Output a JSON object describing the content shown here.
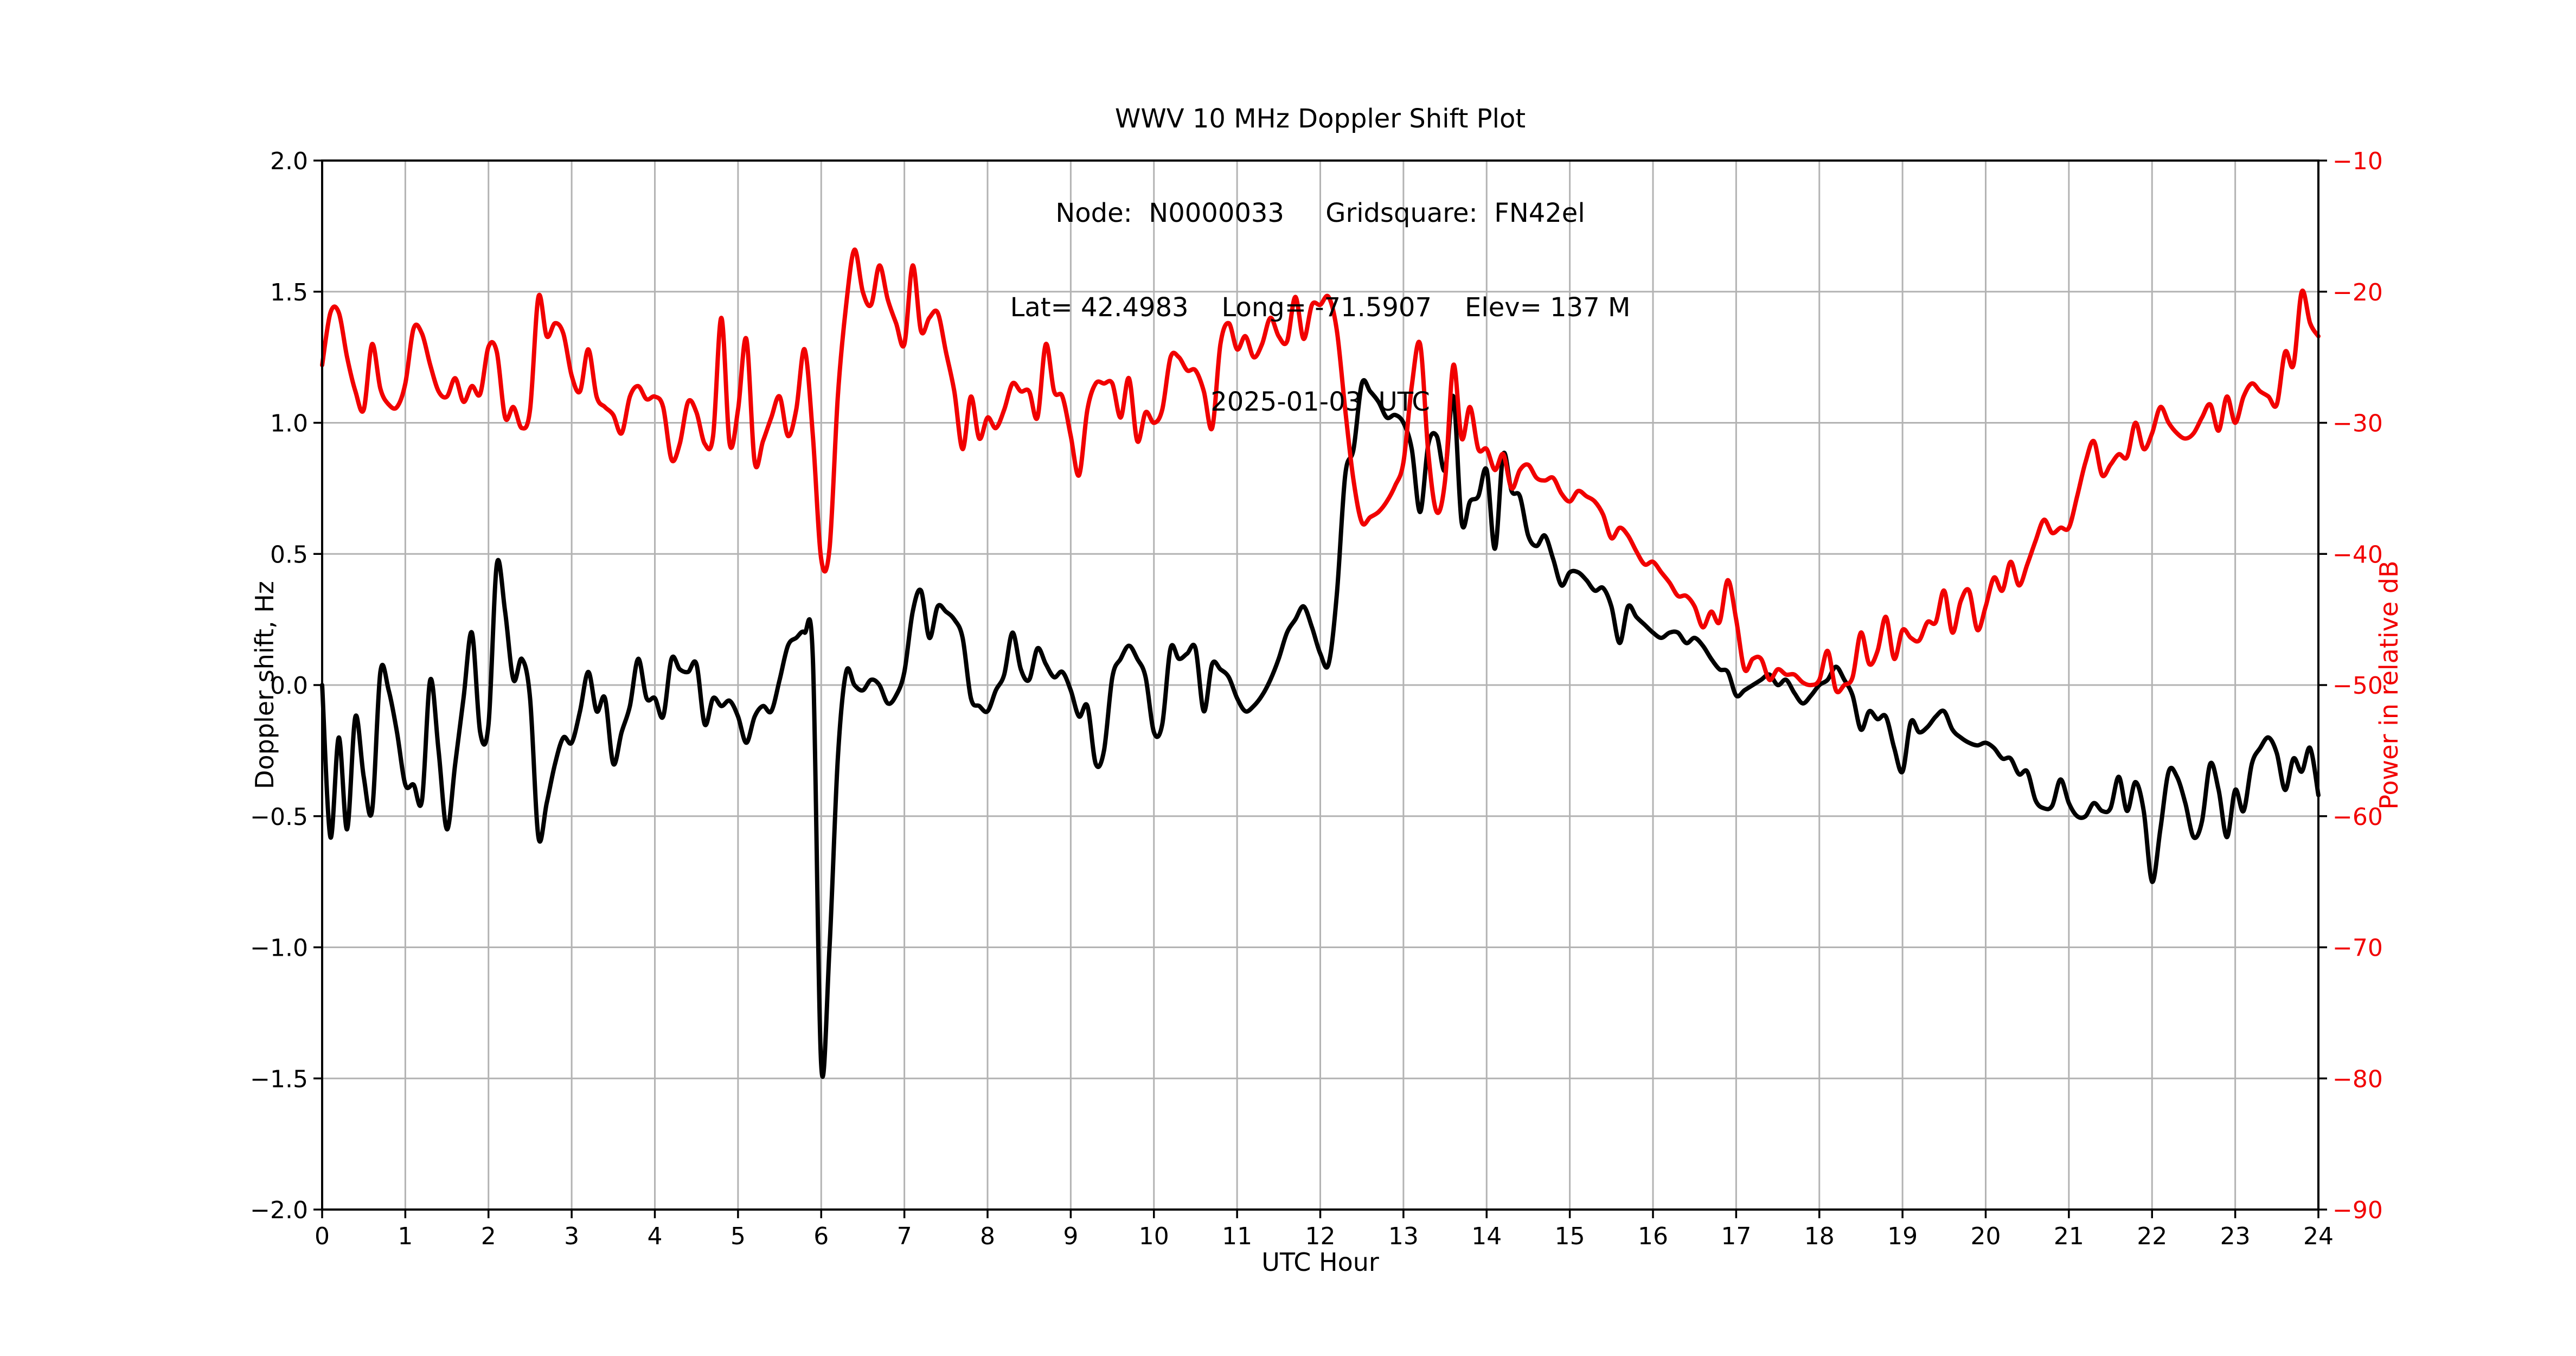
{
  "title": {
    "line1": "WWV 10 MHz Doppler Shift Plot",
    "line2": "Node:  N0000033     Gridsquare:  FN42el",
    "line3": "Lat= 42.4983    Long= -71.5907    Elev= 137 M",
    "line4": "2025-01-03  UTC"
  },
  "axes": {
    "x_label": "UTC Hour",
    "y_left_label": "Doppler shift, Hz",
    "y_right_label": "Power in relative dB",
    "x_tick_labels": [
      "0",
      "1",
      "2",
      "3",
      "4",
      "5",
      "6",
      "7",
      "8",
      "9",
      "10",
      "11",
      "12",
      "13",
      "14",
      "15",
      "16",
      "17",
      "18",
      "19",
      "20",
      "21",
      "22",
      "23",
      "24"
    ],
    "y_left_tick_labels": [
      "2.0",
      "1.5",
      "1.0",
      "0.5",
      "0.0",
      "−0.5",
      "−1.0",
      "−1.5",
      "−2.0"
    ],
    "y_right_tick_labels": [
      "−10",
      "−20",
      "−30",
      "−40",
      "−50",
      "−60",
      "−70",
      "−80",
      "−90"
    ]
  },
  "colors": {
    "doppler_line": "#000000",
    "power_line": "#f10000",
    "power_label": "#f10000",
    "grid": "#b3b3b3",
    "spine": "#000000",
    "background": "#ffffff"
  },
  "chart_data": {
    "type": "line",
    "title": "WWV 10 MHz Doppler Shift Plot",
    "xlabel": "UTC Hour",
    "x_range": [
      0,
      24
    ],
    "x_tick_step": 1,
    "grid": true,
    "legend": "none",
    "left_axis": {
      "label": "Doppler shift, Hz",
      "ylim": [
        -2.0,
        2.0
      ],
      "tick_step": 0.5,
      "ticks": [
        2.0,
        1.5,
        1.0,
        0.5,
        0.0,
        -0.5,
        -1.0,
        -1.5,
        -2.0
      ]
    },
    "right_axis": {
      "label": "Power in relative dB",
      "ylim": [
        -90,
        -10
      ],
      "tick_step": 10,
      "ticks": [
        -10,
        -20,
        -30,
        -40,
        -50,
        -60,
        -70,
        -80,
        -90
      ]
    },
    "x_start": 0,
    "x_step": 0.1,
    "series": [
      {
        "name": "Doppler shift",
        "axis": "left",
        "unit": "Hz",
        "color": "#000000",
        "values": [
          0.0,
          -0.58,
          -0.2,
          -0.55,
          -0.12,
          -0.35,
          -0.48,
          0.05,
          -0.02,
          -0.18,
          -0.38,
          -0.38,
          -0.44,
          0.02,
          -0.25,
          -0.55,
          -0.3,
          -0.05,
          0.2,
          -0.18,
          -0.15,
          0.46,
          0.28,
          0.02,
          0.1,
          -0.05,
          -0.58,
          -0.45,
          -0.3,
          -0.2,
          -0.22,
          -0.1,
          0.05,
          -0.1,
          -0.05,
          -0.3,
          -0.18,
          -0.08,
          0.1,
          -0.05,
          -0.05,
          -0.12,
          0.1,
          0.06,
          0.05,
          0.08,
          -0.15,
          -0.05,
          -0.08,
          -0.06,
          -0.12,
          -0.22,
          -0.12,
          -0.08,
          -0.1,
          0.02,
          0.15,
          0.18,
          0.2,
          0.1,
          -1.45,
          -1.0,
          -0.28,
          0.05,
          0.0,
          -0.02,
          0.02,
          0.0,
          -0.07,
          -0.04,
          0.05,
          0.28,
          0.36,
          0.18,
          0.3,
          0.28,
          0.25,
          0.18,
          -0.05,
          -0.08,
          -0.1,
          -0.02,
          0.04,
          0.2,
          0.06,
          0.02,
          0.14,
          0.08,
          0.03,
          0.05,
          -0.02,
          -0.12,
          -0.08,
          -0.3,
          -0.25,
          0.03,
          0.1,
          0.15,
          0.1,
          0.03,
          -0.18,
          -0.15,
          0.14,
          0.1,
          0.12,
          0.14,
          -0.1,
          0.08,
          0.06,
          0.03,
          -0.05,
          -0.1,
          -0.08,
          -0.04,
          0.02,
          0.1,
          0.2,
          0.25,
          0.3,
          0.22,
          0.12,
          0.08,
          0.35,
          0.8,
          0.9,
          1.15,
          1.12,
          1.08,
          1.02,
          1.03,
          1.0,
          0.9,
          0.66,
          0.92,
          0.95,
          0.82,
          1.1,
          0.62,
          0.7,
          0.72,
          0.82,
          0.52,
          0.88,
          0.74,
          0.72,
          0.57,
          0.53,
          0.57,
          0.48,
          0.38,
          0.43,
          0.43,
          0.4,
          0.36,
          0.37,
          0.3,
          0.16,
          0.3,
          0.26,
          0.23,
          0.2,
          0.18,
          0.2,
          0.2,
          0.16,
          0.18,
          0.15,
          0.1,
          0.06,
          0.05,
          -0.04,
          -0.02,
          0.0,
          0.02,
          0.04,
          0.0,
          0.02,
          -0.03,
          -0.07,
          -0.04,
          0.0,
          0.02,
          0.07,
          0.02,
          -0.04,
          -0.17,
          -0.1,
          -0.13,
          -0.12,
          -0.24,
          -0.33,
          -0.14,
          -0.18,
          -0.16,
          -0.12,
          -0.1,
          -0.17,
          -0.2,
          -0.22,
          -0.23,
          -0.22,
          -0.24,
          -0.28,
          -0.28,
          -0.34,
          -0.33,
          -0.44,
          -0.47,
          -0.46,
          -0.36,
          -0.45,
          -0.5,
          -0.5,
          -0.45,
          -0.48,
          -0.47,
          -0.35,
          -0.48,
          -0.37,
          -0.48,
          -0.75,
          -0.55,
          -0.33,
          -0.35,
          -0.45,
          -0.58,
          -0.52,
          -0.3,
          -0.4,
          -0.58,
          -0.4,
          -0.48,
          -0.3,
          -0.24,
          -0.2,
          -0.26,
          -0.4,
          -0.28,
          -0.33,
          -0.24,
          -0.42
        ]
      },
      {
        "name": "Power",
        "axis": "right",
        "unit": "dB",
        "color": "#f10000",
        "values": [
          -25.6,
          -21.6,
          -21.6,
          -25.0,
          -27.6,
          -29.0,
          -24.0,
          -27.4,
          -28.6,
          -28.8,
          -27.0,
          -22.8,
          -23.2,
          -25.6,
          -27.6,
          -28.0,
          -26.6,
          -28.4,
          -27.2,
          -27.8,
          -24.2,
          -24.6,
          -29.6,
          -28.8,
          -30.4,
          -29.0,
          -20.4,
          -23.4,
          -22.4,
          -23.2,
          -26.4,
          -27.6,
          -24.4,
          -28.0,
          -28.8,
          -29.4,
          -30.8,
          -28.0,
          -27.2,
          -28.2,
          -28.0,
          -28.8,
          -32.8,
          -31.6,
          -28.4,
          -29.2,
          -31.6,
          -31.0,
          -22.0,
          -31.6,
          -29.0,
          -23.6,
          -33.0,
          -31.4,
          -29.6,
          -28.0,
          -31.0,
          -29.0,
          -24.4,
          -31.0,
          -40.4,
          -39.6,
          -28.0,
          -21.0,
          -16.8,
          -20.0,
          -21.0,
          -18.0,
          -20.6,
          -22.4,
          -24.0,
          -18.0,
          -23.0,
          -22.0,
          -21.6,
          -24.6,
          -27.6,
          -32.0,
          -28.0,
          -31.2,
          -29.6,
          -30.4,
          -29.0,
          -27.0,
          -27.6,
          -27.6,
          -29.6,
          -24.0,
          -27.6,
          -28.0,
          -31.0,
          -34.0,
          -29.0,
          -27.0,
          -27.0,
          -27.0,
          -29.6,
          -26.6,
          -31.4,
          -29.2,
          -30.0,
          -29.0,
          -25.0,
          -25.0,
          -26.0,
          -26.0,
          -27.6,
          -30.4,
          -24.0,
          -22.4,
          -24.4,
          -23.4,
          -25.0,
          -24.0,
          -22.0,
          -23.4,
          -23.8,
          -20.4,
          -23.6,
          -21.0,
          -21.0,
          -20.4,
          -23.0,
          -29.0,
          -34.4,
          -37.6,
          -37.2,
          -36.8,
          -36.0,
          -34.8,
          -33.0,
          -27.2,
          -24.0,
          -32.4,
          -36.8,
          -34.4,
          -25.6,
          -31.2,
          -28.8,
          -32.0,
          -32.0,
          -33.6,
          -32.4,
          -35.0,
          -33.6,
          -33.2,
          -34.2,
          -34.4,
          -34.2,
          -35.4,
          -36.0,
          -35.2,
          -35.6,
          -36.0,
          -37.0,
          -38.8,
          -38.0,
          -38.6,
          -39.8,
          -40.8,
          -40.6,
          -41.4,
          -42.2,
          -43.2,
          -43.2,
          -44.0,
          -45.6,
          -44.4,
          -45.2,
          -42.0,
          -45.0,
          -48.8,
          -48.0,
          -48.0,
          -49.6,
          -48.8,
          -49.2,
          -49.2,
          -49.8,
          -50.0,
          -49.6,
          -47.4,
          -50.4,
          -50.0,
          -49.4,
          -46.0,
          -48.4,
          -47.4,
          -44.8,
          -48.0,
          -45.8,
          -46.4,
          -46.6,
          -45.2,
          -45.2,
          -42.8,
          -46.0,
          -43.6,
          -42.8,
          -45.8,
          -44.0,
          -41.8,
          -42.8,
          -40.6,
          -42.4,
          -40.8,
          -39.0,
          -37.4,
          -38.4,
          -38.0,
          -38.0,
          -35.6,
          -33.0,
          -31.4,
          -34.0,
          -33.2,
          -32.4,
          -32.6,
          -30.0,
          -32.0,
          -30.8,
          -28.8,
          -30.0,
          -30.8,
          -31.2,
          -30.8,
          -29.6,
          -28.6,
          -30.6,
          -28.0,
          -30.0,
          -28.0,
          -27.0,
          -27.6,
          -28.0,
          -28.6,
          -24.6,
          -25.6,
          -20.0,
          -22.4,
          -23.4
        ]
      }
    ]
  },
  "layout_note": ""
}
